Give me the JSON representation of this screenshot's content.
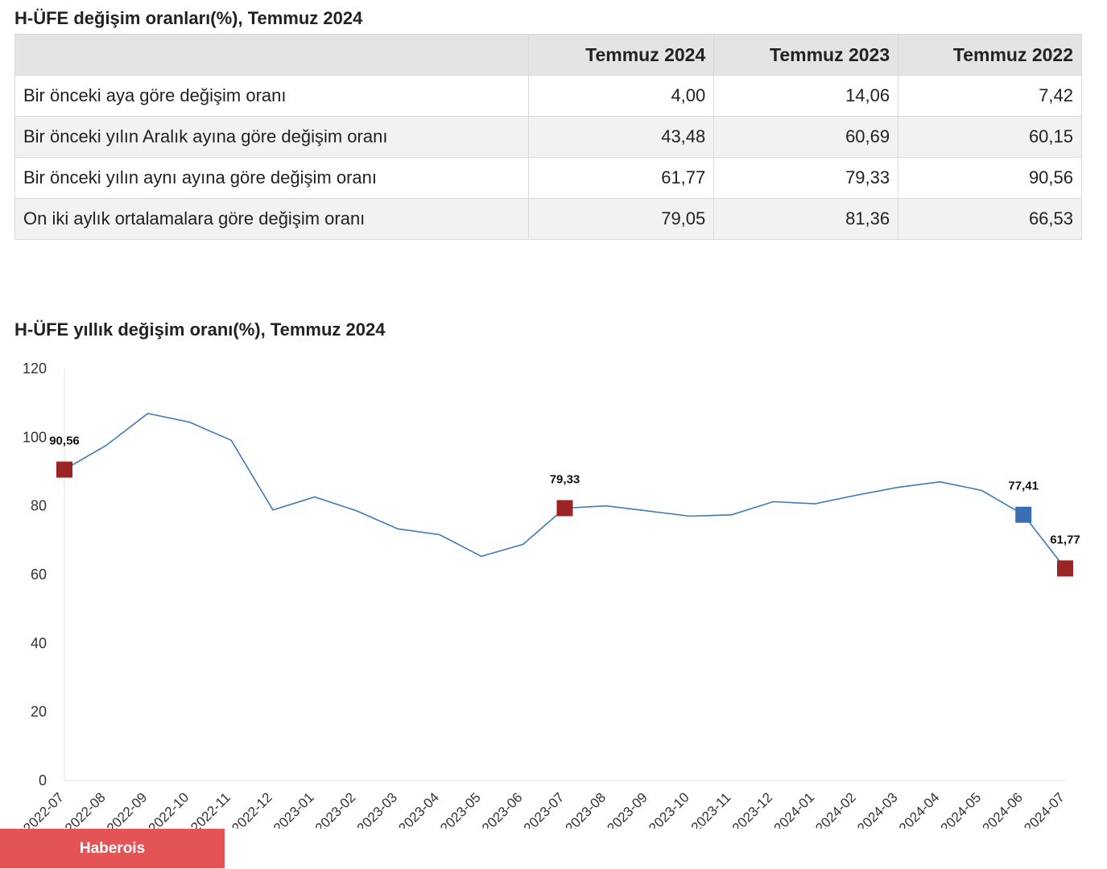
{
  "table": {
    "title": "H-ÜFE değişim oranları(%), Temmuz 2024",
    "headers": [
      "",
      "Temmuz 2024",
      "Temmuz 2023",
      "Temmuz 2022"
    ],
    "rows": [
      {
        "label": "Bir önceki aya göre değişim oranı",
        "values": [
          "4,00",
          "14,06",
          "7,42"
        ]
      },
      {
        "label": "Bir önceki yılın Aralık ayına göre değişim oranı",
        "values": [
          "43,48",
          "60,69",
          "60,15"
        ]
      },
      {
        "label": "Bir önceki yılın aynı ayına göre değişim oranı",
        "values": [
          "61,77",
          "79,33",
          "90,56"
        ]
      },
      {
        "label": "On iki aylık ortalamalara göre değişim oranı",
        "values": [
          "79,05",
          "81,36",
          "66,53"
        ]
      }
    ]
  },
  "chart_data": {
    "type": "line",
    "title": "H-ÜFE yıllık değişim oranı(%), Temmuz 2024",
    "xlabel": "",
    "ylabel": "",
    "ylim": [
      0,
      120
    ],
    "yticks": [
      0,
      20,
      40,
      60,
      80,
      100,
      120
    ],
    "grid": false,
    "legend": "none",
    "x": [
      "2022-07",
      "2022-08",
      "2022-09",
      "2022-10",
      "2022-11",
      "2022-12",
      "2023-01",
      "2023-02",
      "2023-03",
      "2023-04",
      "2023-05",
      "2023-06",
      "2023-07",
      "2023-08",
      "2023-09",
      "2023-10",
      "2023-11",
      "2023-12",
      "2024-01",
      "2024-02",
      "2024-03",
      "2024-04",
      "2024-05",
      "2024-06",
      "2024-07"
    ],
    "series": [
      {
        "values": [
          90.56,
          97.6,
          106.9,
          104.4,
          99.1,
          78.8,
          82.6,
          78.6,
          73.3,
          71.6,
          65.3,
          68.8,
          79.33,
          80.0,
          78.5,
          77.0,
          77.4,
          81.2,
          80.6,
          83.1,
          85.4,
          87.0,
          84.5,
          77.41,
          61.77
        ],
        "color": "#3d7ab8"
      }
    ],
    "markers": [
      {
        "index": 0,
        "label": "90,56",
        "color": "#9b2424"
      },
      {
        "index": 12,
        "label": "79,33",
        "color": "#9b2424"
      },
      {
        "index": 23,
        "label": "77,41",
        "color": "#3b6fb4"
      },
      {
        "index": 24,
        "label": "61,77",
        "color": "#9b2424"
      }
    ]
  },
  "watermark": "Haberois"
}
